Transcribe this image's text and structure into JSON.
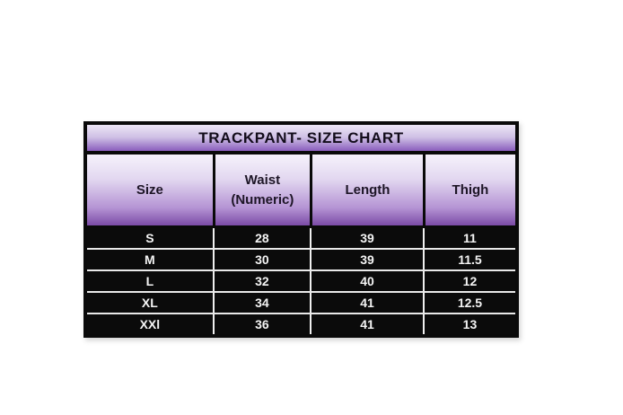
{
  "table": {
    "title": "TRACKPANT- SIZE CHART",
    "columns": [
      "Size",
      "Waist (Numeric)",
      "Length",
      "Thigh"
    ],
    "rows": [
      [
        "S",
        "28",
        "39",
        "11"
      ],
      [
        "M",
        "30",
        "39",
        "11.5"
      ],
      [
        "L",
        "32",
        "40",
        "12"
      ],
      [
        "XL",
        "34",
        "41",
        "12.5"
      ],
      [
        "XXl",
        "36",
        "41",
        "13"
      ]
    ],
    "colors": {
      "accent_purple": "#7b4ba6",
      "title_gradient_top": "#ece5f5",
      "title_gradient_bottom": "#8a5dbd",
      "header_gradient_top": "#f6f2fb",
      "header_gradient_bottom": "#7b4ba6",
      "border_black": "#0a0a0a",
      "data_background": "#0b0b0b",
      "data_text": "#ffffff",
      "header_text": "#1d1526",
      "page_background": "#ffffff"
    }
  }
}
